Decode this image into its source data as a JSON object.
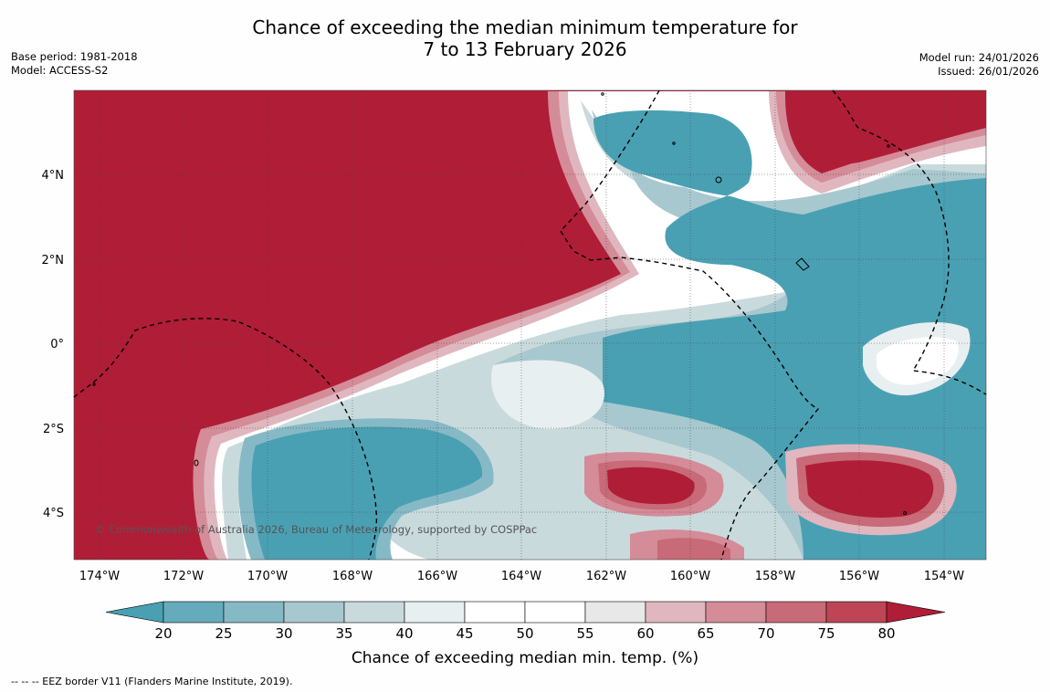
{
  "title": {
    "line1": "Chance of exceeding the median minimum temperature for",
    "line2": "7 to 13 February 2026"
  },
  "meta": {
    "base_period": "Base period: 1981-2018",
    "model": "Model: ACCESS-S2",
    "model_run": "Model run: 24/01/2026",
    "issued": "Issued: 26/01/2026"
  },
  "map": {
    "lat_labels": [
      "4°N",
      "2°N",
      "0°",
      "2°S",
      "4°S"
    ],
    "lon_labels": [
      "174°W",
      "172°W",
      "170°W",
      "168°W",
      "166°W",
      "164°W",
      "162°W",
      "160°W",
      "158°W",
      "156°W",
      "154°W"
    ],
    "copyright": "© Commonwealth of Australia 2026, Bureau of Meteorology, supported by COSPPac"
  },
  "legend": {
    "tick_labels": [
      "20",
      "25",
      "30",
      "35",
      "40",
      "45",
      "50",
      "55",
      "60",
      "65",
      "70",
      "75",
      "80"
    ],
    "title": "Chance of exceeding median min. temp. (%)",
    "colors": [
      "#4aa0b3",
      "#66abbc",
      "#86b9c6",
      "#a8c8cf",
      "#c9dadd",
      "#e8eff0",
      "#ffffff",
      "#ffffff",
      "#e8e8e8",
      "#e0b7bf",
      "#d48c98",
      "#c86a77",
      "#bd4556",
      "#b01d37"
    ]
  },
  "footer": {
    "eez_note": "--  --  -- EEZ border V11 (Flanders Marine Institute, 2019)."
  }
}
